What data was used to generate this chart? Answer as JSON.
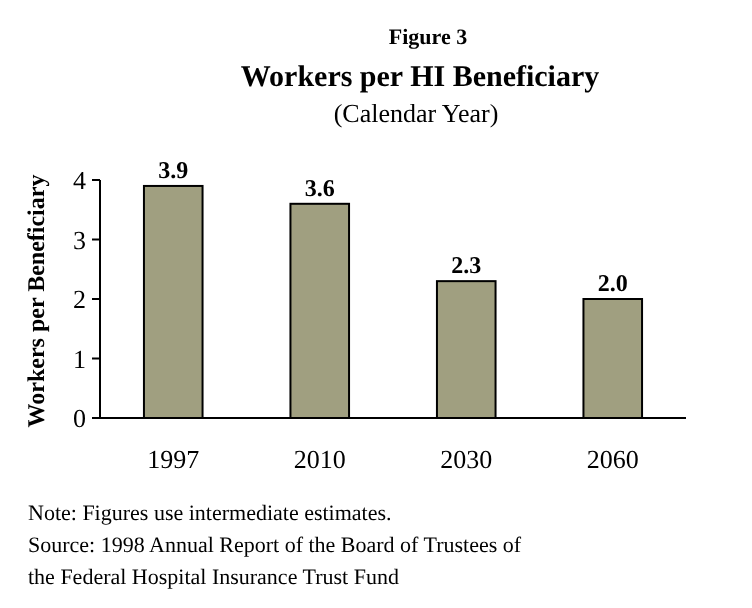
{
  "chart_data": {
    "type": "bar",
    "title": "Workers per HI Beneficiary",
    "subtitle": "(Calendar Year)",
    "ylabel": "Workers per Beneficiary",
    "categories": [
      "1997",
      "2010",
      "2030",
      "2060"
    ],
    "values": [
      3.9,
      3.6,
      2.3,
      2.0
    ],
    "value_labels": [
      "3.9",
      "3.6",
      "2.3",
      "2.0"
    ],
    "color": "#a09f80",
    "ylim": [
      0,
      4
    ],
    "yticks": [
      0,
      1,
      2,
      3,
      4
    ],
    "grid": false,
    "annotations": [
      "Figure 3",
      "Note: Figures use intermediate estimates.",
      "Source: 1998 Annual Report of the Board of Trustees of",
      "the Federal Hospital Insurance Trust Fund"
    ]
  }
}
